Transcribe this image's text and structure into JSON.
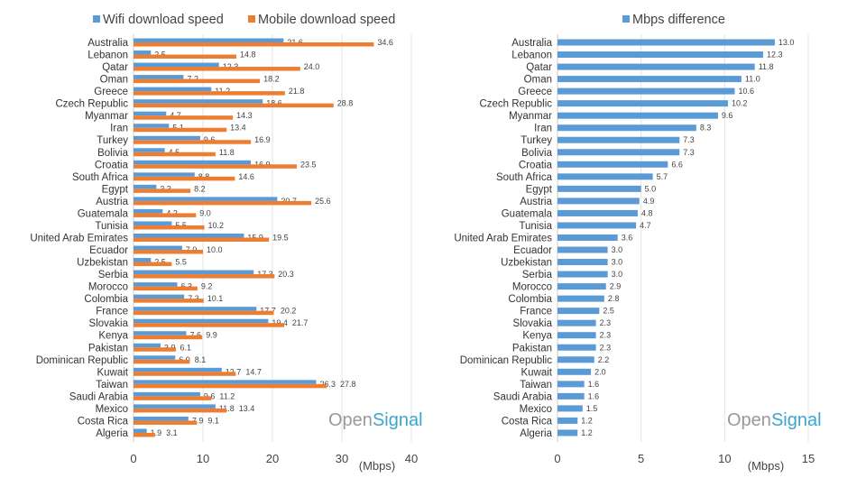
{
  "colors": {
    "wifi": "#5b9bd5",
    "mobile": "#ed7d31",
    "diff": "#5b9bd5"
  },
  "watermark": "OpenSignal",
  "chart_data": [
    {
      "type": "bar",
      "orientation": "horizontal",
      "xlabel": "(Mbps)",
      "xlim": [
        0,
        40
      ],
      "xticks": [
        0,
        10,
        20,
        30,
        40
      ],
      "grid": true,
      "legend": "top",
      "categories": [
        "Australia",
        "Lebanon",
        "Qatar",
        "Oman",
        "Greece",
        "Czech Republic",
        "Myanmar",
        "Iran",
        "Turkey",
        "Bolivia",
        "Croatia",
        "South Africa",
        "Egypt",
        "Austria",
        "Guatemala",
        "Tunisia",
        "United Arab Emirates",
        "Ecuador",
        "Uzbekistan",
        "Serbia",
        "Morocco",
        "Colombia",
        "France",
        "Slovakia",
        "Kenya",
        "Pakistan",
        "Dominican Republic",
        "Kuwait",
        "Taiwan",
        "Saudi Arabia",
        "Mexico",
        "Costa Rica",
        "Algeria"
      ],
      "series": [
        {
          "name": "Wifi download speed",
          "values": [
            21.6,
            2.5,
            12.3,
            7.2,
            11.2,
            18.6,
            4.7,
            5.1,
            9.6,
            4.5,
            16.9,
            8.8,
            3.3,
            20.7,
            4.2,
            5.5,
            15.9,
            7.0,
            2.5,
            17.3,
            6.3,
            7.3,
            17.7,
            19.4,
            7.6,
            3.9,
            6.0,
            12.7,
            26.3,
            9.6,
            11.8,
            7.9,
            1.9
          ]
        },
        {
          "name": "Mobile download speed",
          "values": [
            34.6,
            14.8,
            24.0,
            18.2,
            21.8,
            28.8,
            14.3,
            13.4,
            16.9,
            11.8,
            23.5,
            14.6,
            8.2,
            25.6,
            9.0,
            10.2,
            19.5,
            10.0,
            5.5,
            20.3,
            9.2,
            10.1,
            20.2,
            21.7,
            9.9,
            6.1,
            8.1,
            14.7,
            27.8,
            11.2,
            13.4,
            9.1,
            3.1
          ]
        }
      ]
    },
    {
      "type": "bar",
      "orientation": "horizontal",
      "xlabel": "(Mbps)",
      "xlim": [
        0,
        15
      ],
      "xticks": [
        0,
        5,
        10,
        15
      ],
      "grid": true,
      "legend": "top",
      "categories": [
        "Australia",
        "Lebanon",
        "Qatar",
        "Oman",
        "Greece",
        "Czech Republic",
        "Myanmar",
        "Iran",
        "Turkey",
        "Bolivia",
        "Croatia",
        "South Africa",
        "Egypt",
        "Austria",
        "Guatemala",
        "Tunisia",
        "United Arab Emirates",
        "Ecuador",
        "Uzbekistan",
        "Serbia",
        "Morocco",
        "Colombia",
        "France",
        "Slovakia",
        "Kenya",
        "Pakistan",
        "Dominican Republic",
        "Kuwait",
        "Taiwan",
        "Saudi Arabia",
        "Mexico",
        "Costa Rica",
        "Algeria"
      ],
      "series": [
        {
          "name": "Mbps difference",
          "values": [
            13.0,
            12.3,
            11.8,
            11.0,
            10.6,
            10.2,
            9.6,
            8.3,
            7.3,
            7.3,
            6.6,
            5.7,
            5.0,
            4.9,
            4.8,
            4.7,
            3.6,
            3.0,
            3.0,
            3.0,
            2.9,
            2.8,
            2.5,
            2.3,
            2.3,
            2.3,
            2.2,
            2.0,
            1.6,
            1.6,
            1.5,
            1.2,
            1.2
          ]
        }
      ]
    }
  ]
}
